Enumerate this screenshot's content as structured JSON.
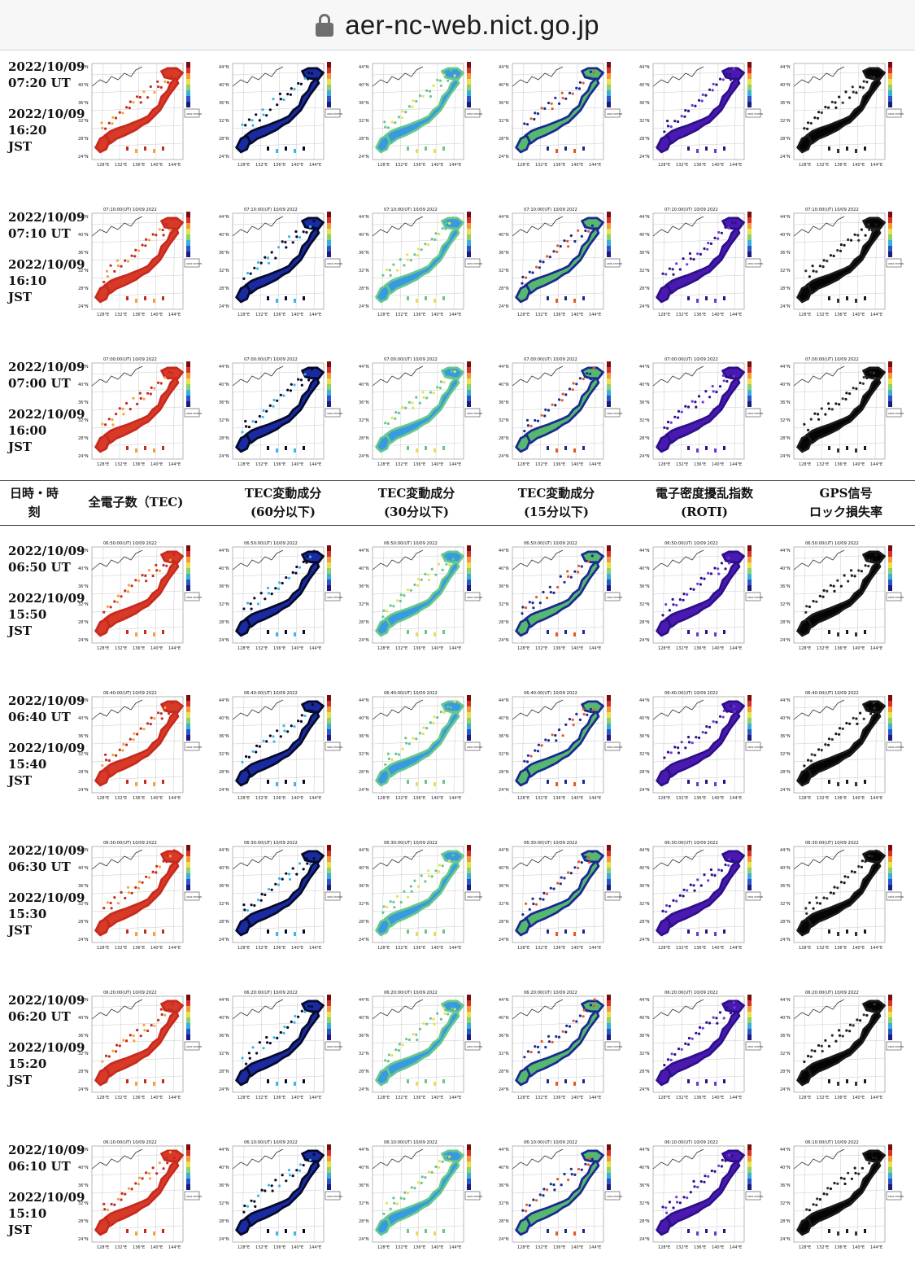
{
  "browser": {
    "url": "aer-nc-web.nict.go.jp",
    "lock_icon": "lock-icon"
  },
  "header": {
    "col0": [
      "日時・時",
      "刻"
    ],
    "col1": [
      "全電子数（TEC)"
    ],
    "col2": [
      "TEC変動成分",
      "(60分以下)"
    ],
    "col3": [
      "TEC変動成分",
      "(30分以下)"
    ],
    "col4": [
      "TEC変動成分",
      "(15分以下)"
    ],
    "col5": [
      "電子密度擾乱指数",
      "(ROTI)"
    ],
    "col6": [
      "GPS信号",
      "ロック損失率"
    ]
  },
  "rows": [
    {
      "ut_date": "2022/10/09",
      "ut_time": "07:20 UT",
      "jst_date": "2022/10/09",
      "jst_time": "16:20",
      "jst": "JST",
      "map_title": ""
    },
    {
      "ut_date": "2022/10/09",
      "ut_time": "07:10 UT",
      "jst_date": "2022/10/09",
      "jst_time": "16:10",
      "jst": "JST",
      "map_title": "07:10:00(UT) 10/09 2022"
    },
    {
      "ut_date": "2022/10/09",
      "ut_time": "07:00 UT",
      "jst_date": "2022/10/09",
      "jst_time": "16:00",
      "jst": "JST",
      "map_title": "07:00:00(UT) 10/09 2022"
    },
    {
      "ut_date": "2022/10/09",
      "ut_time": "06:50 UT",
      "jst_date": "2022/10/09",
      "jst_time": "15:50",
      "jst": "JST",
      "map_title": "06:50:00(UT) 10/09 2022"
    },
    {
      "ut_date": "2022/10/09",
      "ut_time": "06:40 UT",
      "jst_date": "2022/10/09",
      "jst_time": "15:40",
      "jst": "JST",
      "map_title": "06:40:00(UT) 10/09 2022"
    },
    {
      "ut_date": "2022/10/09",
      "ut_time": "06:30 UT",
      "jst_date": "2022/10/09",
      "jst_time": "15:30",
      "jst": "JST",
      "map_title": "06:30:00(UT) 10/09 2022"
    },
    {
      "ut_date": "2022/10/09",
      "ut_time": "06:20 UT",
      "jst_date": "2022/10/09",
      "jst_time": "15:20",
      "jst": "JST",
      "map_title": "06:20:00(UT) 10/09 2022"
    },
    {
      "ut_date": "2022/10/09",
      "ut_time": "06:10 UT",
      "jst_date": "2022/10/09",
      "jst_time": "15:10",
      "jst": "JST",
      "map_title": "06:10:00(UT) 10/09 2022"
    }
  ],
  "map_axes": {
    "lat_labels": [
      "44°N",
      "40°N",
      "36°N",
      "32°N",
      "28°N",
      "24°N"
    ],
    "lon_labels": [
      "128°E",
      "132°E",
      "136°E",
      "140°E",
      "144°E"
    ],
    "legend_box": "GNSS STATION"
  },
  "panels": [
    {
      "name": "tec-map",
      "fill": "#d83a28",
      "fill2": "#c72a1e",
      "spots": "#f4a23c"
    },
    {
      "name": "tec60-map",
      "fill": "#1a2aa0",
      "fill2": "#050a2a",
      "spots": "#39b7e8"
    },
    {
      "name": "tec30-map",
      "fill": "#3a9ae0",
      "fill2": "#66c88a",
      "spots": "#e5e052"
    },
    {
      "name": "tec15-map",
      "fill": "#55b86e",
      "fill2": "#1a2a90",
      "spots": "#e25a2c"
    },
    {
      "name": "roti-map",
      "fill": "#4a1ab0",
      "fill2": "#2e0f8a",
      "spots": "#6d3ad8"
    },
    {
      "name": "lol-map",
      "fill": "#050505",
      "fill2": "#1a1a1a",
      "spots": "#333333"
    }
  ]
}
